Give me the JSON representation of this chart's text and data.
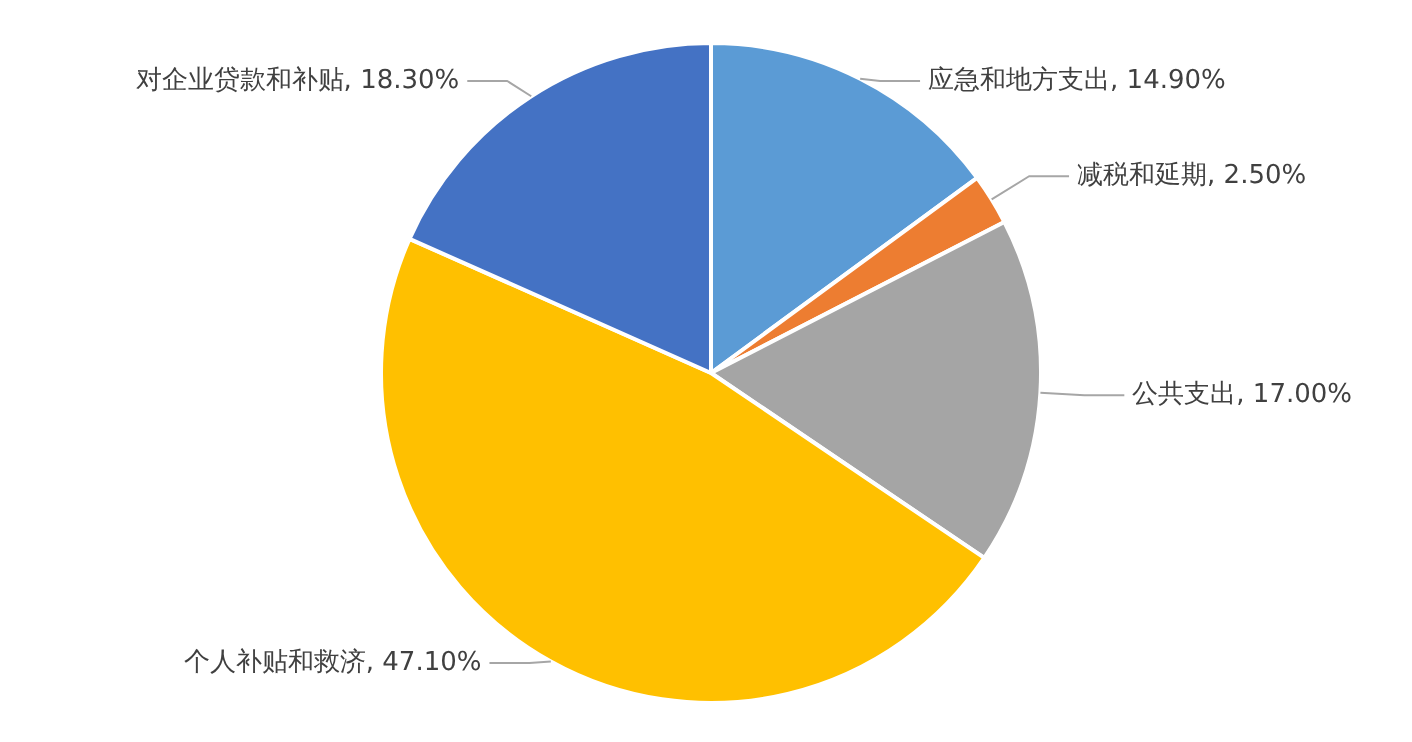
{
  "chart_data": {
    "type": "pie",
    "categories": [
      "应急和地方支出",
      "减税和延期",
      "公共支出",
      "个人补贴和救济",
      "对企业贷款和补贴"
    ],
    "values": [
      14.9,
      2.5,
      17.0,
      47.1,
      18.3
    ],
    "colors": [
      "#5b9bd5",
      "#ed7d31",
      "#a5a5a5",
      "#ffc000",
      "#4472c4"
    ],
    "value_labels": [
      "14.90%",
      "2.50%",
      "17.00%",
      "47.10%",
      "18.30%"
    ]
  }
}
